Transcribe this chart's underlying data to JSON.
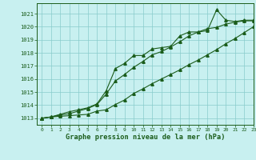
{
  "title": "Graphe pression niveau de la mer (hPa)",
  "bg_color": "#c8f0f0",
  "line_color": "#1a5c1a",
  "grid_color": "#88cccc",
  "xlim": [
    -0.5,
    23
  ],
  "ylim": [
    1012.5,
    1021.8
  ],
  "yticks": [
    1013,
    1014,
    1015,
    1016,
    1017,
    1018,
    1019,
    1020,
    1021
  ],
  "xticks": [
    0,
    1,
    2,
    3,
    4,
    5,
    6,
    7,
    8,
    9,
    10,
    11,
    12,
    13,
    14,
    15,
    16,
    17,
    18,
    19,
    20,
    21,
    22,
    23
  ],
  "series": [
    [
      1013.0,
      1013.1,
      1013.3,
      1013.5,
      1013.65,
      1013.8,
      1014.1,
      1015.1,
      1016.8,
      1017.2,
      1017.8,
      1017.8,
      1018.3,
      1018.4,
      1018.5,
      1019.3,
      1019.6,
      1019.6,
      1019.7,
      1021.3,
      1020.5,
      1020.4,
      1020.5,
      1020.5
    ],
    [
      1013.0,
      1013.1,
      1013.15,
      1013.2,
      1013.25,
      1013.3,
      1013.55,
      1013.65,
      1014.05,
      1014.4,
      1014.9,
      1015.25,
      1015.65,
      1016.0,
      1016.35,
      1016.7,
      1017.1,
      1017.45,
      1017.85,
      1018.25,
      1018.7,
      1019.1,
      1019.55,
      1020.0
    ],
    [
      1013.0,
      1013.1,
      1013.25,
      1013.35,
      1013.55,
      1013.75,
      1014.05,
      1014.85,
      1015.85,
      1016.35,
      1016.9,
      1017.35,
      1017.85,
      1018.1,
      1018.45,
      1018.85,
      1019.3,
      1019.6,
      1019.85,
      1019.95,
      1020.2,
      1020.35,
      1020.45,
      1020.45
    ]
  ]
}
